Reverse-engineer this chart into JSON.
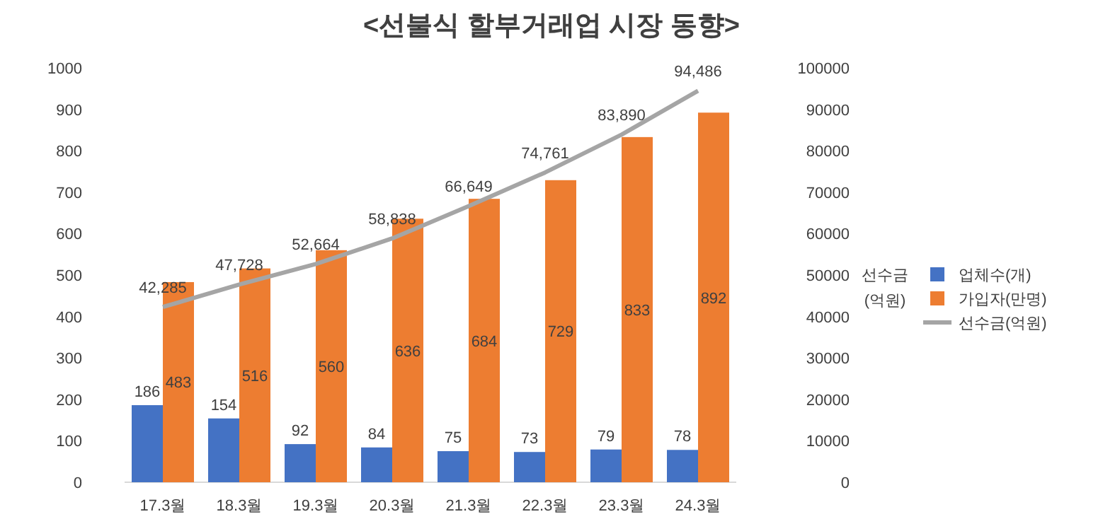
{
  "chart_data": {
    "type": "bar",
    "title": "<선불식 할부거래업 시장 동향>",
    "categories": [
      "17.3월",
      "18.3월",
      "19.3월",
      "20.3월",
      "21.3월",
      "22.3월",
      "23.3월",
      "24.3월"
    ],
    "series": [
      {
        "name": "업체수(개)",
        "color": "#4472c4",
        "values": [
          186,
          154,
          92,
          84,
          75,
          73,
          79,
          78
        ],
        "value_labels": [
          "186",
          "154",
          "92",
          "84",
          "75",
          "73",
          "79",
          "78"
        ]
      },
      {
        "name": "가입자(만명)",
        "color": "#ed7d31",
        "values": [
          483,
          516,
          560,
          636,
          684,
          729,
          833,
          892
        ],
        "value_labels": [
          "483",
          "516",
          "560",
          "636",
          "684",
          "729",
          "833",
          "892"
        ]
      },
      {
        "name": "선수금(억원)",
        "type": "line",
        "axis": "y2",
        "color": "#a5a5a5",
        "values": [
          42285,
          47728,
          52664,
          58838,
          66649,
          74761,
          83890,
          94486
        ],
        "value_labels": [
          "42,285",
          "47,728",
          "52,664",
          "58,838",
          "66,649",
          "74,761",
          "83,890",
          "94,486"
        ]
      }
    ],
    "y2label": "선수금 (억원)",
    "ylim": [
      0,
      1000
    ],
    "yticks": [
      0,
      100,
      200,
      300,
      400,
      500,
      600,
      700,
      800,
      900,
      1000
    ],
    "y2lim": [
      0,
      100000
    ],
    "y2ticks": [
      0,
      10000,
      20000,
      30000,
      40000,
      50000,
      60000,
      70000,
      80000,
      90000,
      100000
    ],
    "legend": "right",
    "marker": "none",
    "line_style": "solid"
  }
}
